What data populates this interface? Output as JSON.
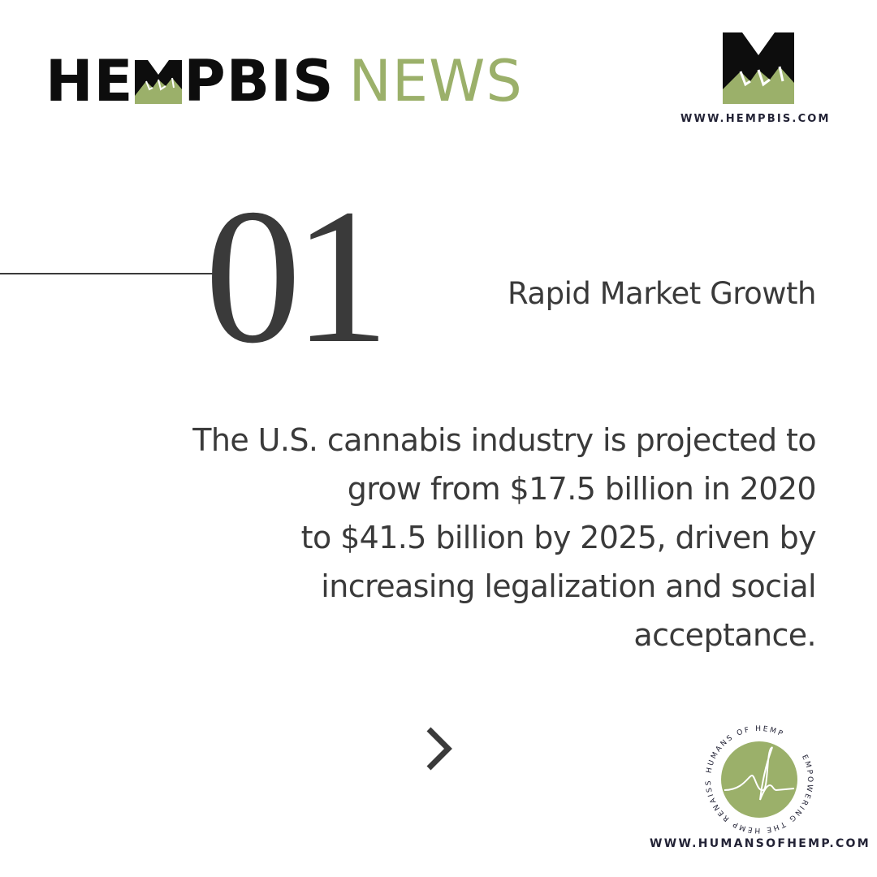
{
  "header": {
    "brand_part1": "HE",
    "brand_part2": "PBIS",
    "brand_news": "NEWS",
    "brand_logo_text": "M",
    "site_url": "WWW.HEMPBIS.COM"
  },
  "slide": {
    "number": "01",
    "title": "Rapid Market Growth",
    "body_lines": [
      "The U.S. cannabis industry is projected to",
      "grow from $17.5 billion in 2020",
      "to $41.5 billion by 2025, driven by",
      "increasing legalization and social",
      "acceptance."
    ],
    "next_icon": "chevron-right-icon"
  },
  "footer": {
    "badge_text_top": "HUMANS OF HEMP",
    "badge_text_right": "EMPOWERING THE HEMP RENAISSANCE",
    "site_url": "WWW.HUMANSOFHEMP.COM"
  },
  "colors": {
    "accent_green": "#9bb06a",
    "text_dark": "#3a3a3a",
    "logo_black": "#0d0d0d",
    "url_navy": "#232336"
  }
}
